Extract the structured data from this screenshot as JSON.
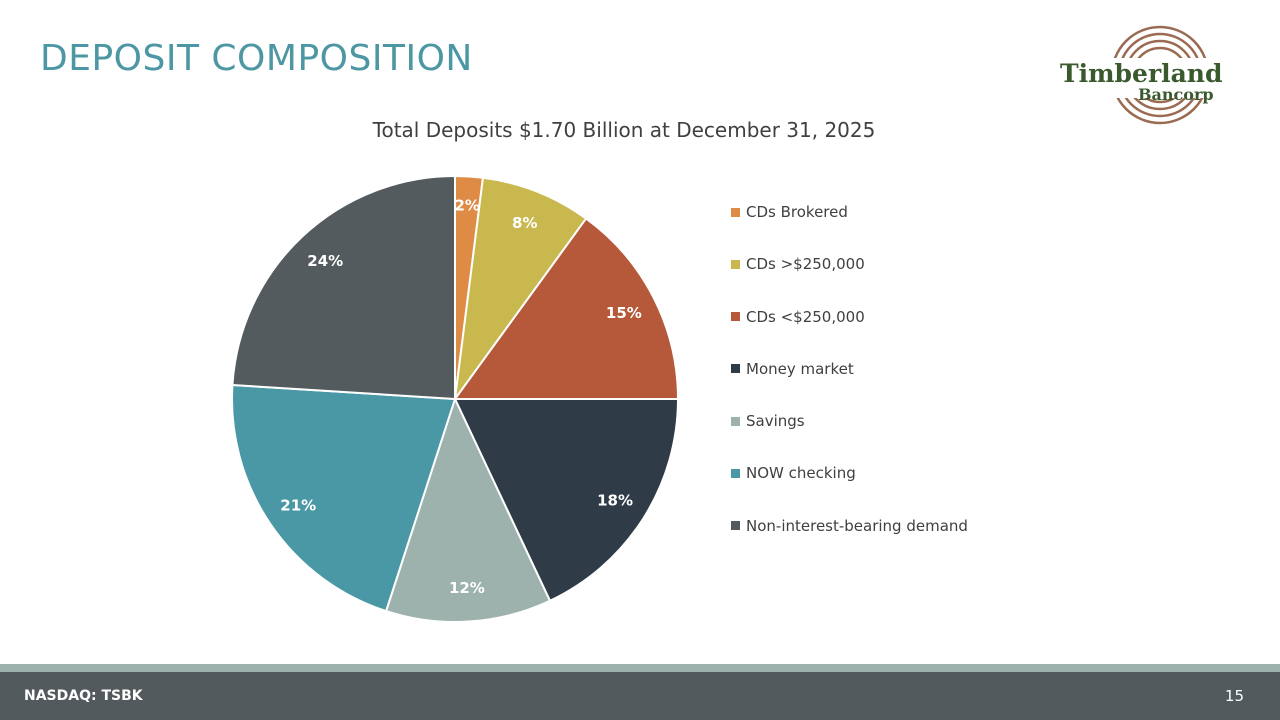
{
  "slide": {
    "title": "DEPOSIT COMPOSITION",
    "title_color": "#4c97a3",
    "logo_text_main": "Timberland",
    "logo_text_sub": "Bancorp",
    "logo_text_color": "#3a5a2e",
    "logo_ring_color": "#9a6b52"
  },
  "chart_data": {
    "type": "pie",
    "title": "Total Deposits $1.70 Billion at December 31, 2025",
    "legend_position": "right",
    "slices": [
      {
        "label": "CDs Brokered",
        "value": 2,
        "display": "2%",
        "color": "#de8b45"
      },
      {
        "label": "CDs >$250,000",
        "value": 8,
        "display": "8%",
        "color": "#c9b84e"
      },
      {
        "label": "CDs <$250,000",
        "value": 15,
        "display": "15%",
        "color": "#b5593a"
      },
      {
        "label": "Money market",
        "value": 18,
        "display": "18%",
        "color": "#2f3c48"
      },
      {
        "label": "Savings",
        "value": 12,
        "display": "12%",
        "color": "#9db2ad"
      },
      {
        "label": "NOW checking",
        "value": 21,
        "display": "21%",
        "color": "#4a98a5"
      },
      {
        "label": "Non-interest-bearing demand",
        "value": 24,
        "display": "24%",
        "color": "#535b5e"
      }
    ]
  },
  "footer": {
    "ticker": "NASDAQ: TSBK",
    "page_number": "15",
    "bar_color": "#525a5d",
    "accent_color": "#9db2ad"
  }
}
